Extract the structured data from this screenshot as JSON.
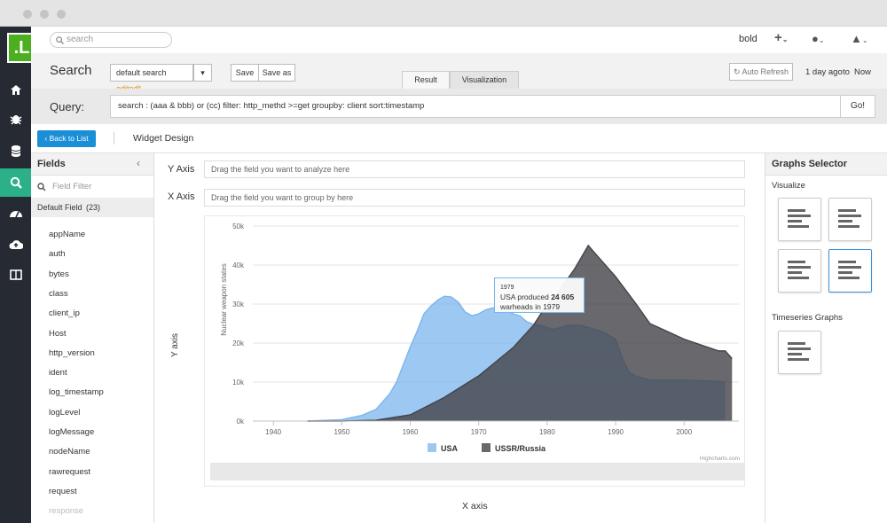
{
  "topbar": {
    "search_placeholder": "search",
    "user": "bold"
  },
  "header": {
    "title": "Search",
    "saved_search": "default search",
    "edited": "edited*",
    "save": "Save",
    "save_as": "Save as",
    "tabs": [
      "Result",
      "Visualization"
    ],
    "auto_refresh": "Auto Refresh",
    "time_from": "1 day ago",
    "time_to_word": "to",
    "time_to": "Now"
  },
  "query": {
    "label": "Query:",
    "value": "search : (aaa & bbb) or (cc)  filter: http_methd >=get  groupby: client sort:timestamp",
    "go": "Go!"
  },
  "toolbar": {
    "back": "Back to List",
    "widget": "Widget Design"
  },
  "fields": {
    "title": "Fields",
    "filter_placeholder": "Field Filter",
    "group": "Default Field",
    "group_count": "(23)",
    "items": [
      "appName",
      "auth",
      "bytes",
      "class",
      "client_ip",
      "Host",
      "http_version",
      "ident",
      "log_timestamp",
      "logLevel",
      "logMessage",
      "nodeName",
      "rawrequest",
      "request",
      "response"
    ]
  },
  "axes": {
    "y_label": "Y Axis",
    "y_placeholder": "Drag the field you want to analyze here",
    "x_label": "X Axis",
    "x_placeholder": "Drag the field you want to group by here",
    "y_axis_text": "Y axis",
    "x_axis_text": "X axis"
  },
  "selector": {
    "title": "Graphs Selector",
    "visualize": "Visualize",
    "timeseries": "Timeseries Graphs"
  },
  "chart_data": {
    "type": "area",
    "ylabel": "Nuclear weapon states",
    "xlim": [
      1937,
      2008
    ],
    "ylim": [
      0,
      50000
    ],
    "x_ticks": [
      1940,
      1950,
      1960,
      1970,
      1980,
      1990,
      2000
    ],
    "y_ticks": [
      "0k",
      "10k",
      "20k",
      "30k",
      "40k",
      "50k"
    ],
    "grid": true,
    "legend_position": "bottom",
    "credit": "Highcharts.com",
    "tooltip": {
      "year": "1979",
      "line1_pre": "USA produced",
      "line1_value": "24 605",
      "line2": "warheads in 1979"
    },
    "series": [
      {
        "name": "USA",
        "color": "#7cb5ec",
        "x": [
          1945,
          1950,
          1953,
          1955,
          1957,
          1958,
          1960,
          1961,
          1962,
          1963,
          1964,
          1965,
          1966,
          1967,
          1968,
          1969,
          1970,
          1971,
          1972,
          1973,
          1974,
          1975,
          1976,
          1977,
          1978,
          1979,
          1980,
          1981,
          1982,
          1983,
          1984,
          1985,
          1986,
          1987,
          1988,
          1989,
          1990,
          1991,
          1992,
          1993,
          1994,
          1995,
          2000,
          2005,
          2006
        ],
        "values": [
          2,
          370,
          1500,
          3000,
          7000,
          10000,
          19000,
          23000,
          27500,
          29500,
          31000,
          32000,
          31800,
          30500,
          28000,
          27000,
          27500,
          28500,
          29000,
          29000,
          28500,
          27500,
          27000,
          25500,
          24800,
          24605,
          24000,
          23500,
          24000,
          24600,
          24600,
          24500,
          24000,
          23500,
          23000,
          22000,
          21000,
          16000,
          12500,
          11500,
          11000,
          10500,
          10500,
          10200,
          10000
        ]
      },
      {
        "name": "USSR/Russia",
        "color": "#434348",
        "x": [
          1945,
          1950,
          1955,
          1960,
          1965,
          1970,
          1975,
          1978,
          1980,
          1981,
          1982,
          1983,
          1984,
          1985,
          1986,
          1987,
          1988,
          1990,
          1993,
          1995,
          2000,
          2005,
          2006,
          2007
        ],
        "values": [
          0,
          5,
          200,
          1600,
          6100,
          11600,
          18800,
          24600,
          30000,
          31500,
          34000,
          36500,
          39000,
          42000,
          45000,
          43000,
          41000,
          37000,
          30000,
          25000,
          21000,
          18000,
          18000,
          16000
        ]
      }
    ]
  }
}
